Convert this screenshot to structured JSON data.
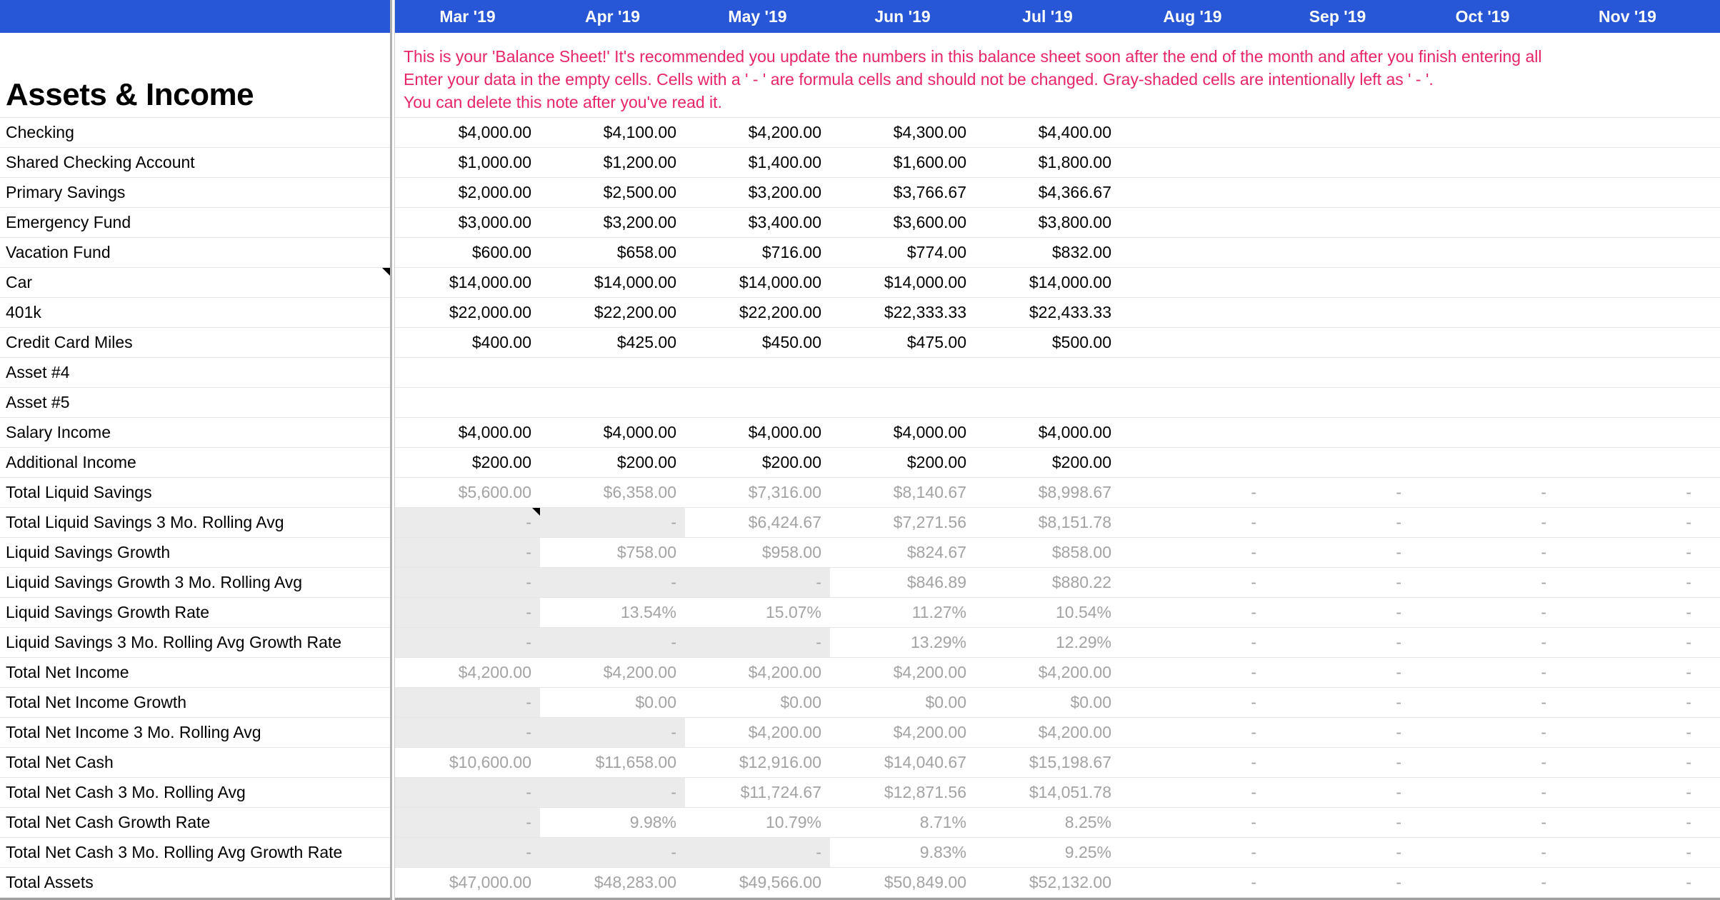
{
  "colors": {
    "header_bg": "#2757d6",
    "header_text": "#ffffff",
    "note_text": "#e82565",
    "input_text": "#000000",
    "formula_text": "#a3a3a3",
    "shaded_cell_bg": "#ebebeb",
    "grid_line": "#e6e6e6"
  },
  "title": "Assets & Income",
  "note_lines": [
    "This is your 'Balance Sheet!' It's recommended you update the numbers in this balance sheet soon after the end of the month and after you finish entering all",
    "Enter your data in the empty cells. Cells with a ' - ' are formula cells and should not be changed. Gray-shaded cells are intentionally left as ' - '.",
    "You can delete this note after you've read it."
  ],
  "months": [
    "Mar '19",
    "Apr '19",
    "May '19",
    "Jun '19",
    "Jul '19",
    "Aug '19",
    "Sep '19",
    "Oct '19",
    "Nov '19"
  ],
  "rows": [
    {
      "label": "Checking",
      "type": "input",
      "cells": [
        "$4,000.00",
        "$4,100.00",
        "$4,200.00",
        "$4,300.00",
        "$4,400.00",
        "",
        "",
        "",
        ""
      ]
    },
    {
      "label": "Shared Checking Account",
      "type": "input",
      "cells": [
        "$1,000.00",
        "$1,200.00",
        "$1,400.00",
        "$1,600.00",
        "$1,800.00",
        "",
        "",
        "",
        ""
      ]
    },
    {
      "label": "Primary Savings",
      "type": "input",
      "cells": [
        "$2,000.00",
        "$2,500.00",
        "$3,200.00",
        "$3,766.67",
        "$4,366.67",
        "",
        "",
        "",
        ""
      ]
    },
    {
      "label": "Emergency Fund",
      "type": "input",
      "cells": [
        "$3,000.00",
        "$3,200.00",
        "$3,400.00",
        "$3,600.00",
        "$3,800.00",
        "",
        "",
        "",
        ""
      ]
    },
    {
      "label": "Vacation Fund",
      "type": "input",
      "cells": [
        "$600.00",
        "$658.00",
        "$716.00",
        "$774.00",
        "$832.00",
        "",
        "",
        "",
        ""
      ]
    },
    {
      "label": "Car",
      "type": "input",
      "label_note_marker": true,
      "cells": [
        "$14,000.00",
        "$14,000.00",
        "$14,000.00",
        "$14,000.00",
        "$14,000.00",
        "",
        "",
        "",
        ""
      ]
    },
    {
      "label": "401k",
      "type": "input",
      "cells": [
        "$22,000.00",
        "$22,200.00",
        "$22,200.00",
        "$22,333.33",
        "$22,433.33",
        "",
        "",
        "",
        ""
      ]
    },
    {
      "label": "Credit Card Miles",
      "type": "input",
      "cells": [
        "$400.00",
        "$425.00",
        "$450.00",
        "$475.00",
        "$500.00",
        "",
        "",
        "",
        ""
      ]
    },
    {
      "label": "Asset #4",
      "type": "input",
      "cells": [
        "",
        "",
        "",
        "",
        "",
        "",
        "",
        "",
        ""
      ]
    },
    {
      "label": "Asset #5",
      "type": "input",
      "cells": [
        "",
        "",
        "",
        "",
        "",
        "",
        "",
        "",
        ""
      ]
    },
    {
      "label": "Salary Income",
      "type": "input",
      "cells": [
        "$4,000.00",
        "$4,000.00",
        "$4,000.00",
        "$4,000.00",
        "$4,000.00",
        "",
        "",
        "",
        ""
      ]
    },
    {
      "label": "Additional Income",
      "type": "input",
      "cells": [
        "$200.00",
        "$200.00",
        "$200.00",
        "$200.00",
        "$200.00",
        "",
        "",
        "",
        ""
      ]
    },
    {
      "label": "Total Liquid Savings",
      "type": "formula",
      "cells": [
        "$5,600.00",
        "$6,358.00",
        "$7,316.00",
        "$8,140.67",
        "$8,998.67",
        "-",
        "-",
        "-",
        "-"
      ]
    },
    {
      "label": "Total Liquid Savings 3 Mo. Rolling Avg",
      "type": "formula",
      "shaded": [
        0,
        1
      ],
      "cell_note_marker": 0,
      "cells": [
        "-",
        "-",
        "$6,424.67",
        "$7,271.56",
        "$8,151.78",
        "-",
        "-",
        "-",
        "-"
      ]
    },
    {
      "label": "Liquid Savings Growth",
      "type": "formula",
      "shaded": [
        0
      ],
      "cells": [
        "-",
        "$758.00",
        "$958.00",
        "$824.67",
        "$858.00",
        "-",
        "-",
        "-",
        "-"
      ]
    },
    {
      "label": "Liquid Savings Growth 3 Mo. Rolling Avg",
      "type": "formula",
      "shaded": [
        0,
        1,
        2
      ],
      "cells": [
        "-",
        "-",
        "-",
        "$846.89",
        "$880.22",
        "-",
        "-",
        "-",
        "-"
      ]
    },
    {
      "label": "Liquid Savings Growth Rate",
      "type": "formula",
      "shaded": [
        0
      ],
      "cells": [
        "-",
        "13.54%",
        "15.07%",
        "11.27%",
        "10.54%",
        "-",
        "-",
        "-",
        "-"
      ]
    },
    {
      "label": "Liquid Savings 3 Mo. Rolling Avg Growth Rate",
      "type": "formula",
      "shaded": [
        0,
        1,
        2
      ],
      "cells": [
        "-",
        "-",
        "-",
        "13.29%",
        "12.29%",
        "-",
        "-",
        "-",
        "-"
      ]
    },
    {
      "label": "Total Net Income",
      "type": "formula",
      "cells": [
        "$4,200.00",
        "$4,200.00",
        "$4,200.00",
        "$4,200.00",
        "$4,200.00",
        "-",
        "-",
        "-",
        "-"
      ]
    },
    {
      "label": "Total Net Income Growth",
      "type": "formula",
      "shaded": [
        0
      ],
      "cells": [
        "-",
        "$0.00",
        "$0.00",
        "$0.00",
        "$0.00",
        "-",
        "-",
        "-",
        "-"
      ]
    },
    {
      "label": "Total Net Income 3 Mo. Rolling Avg",
      "type": "formula",
      "shaded": [
        0,
        1
      ],
      "cells": [
        "-",
        "-",
        "$4,200.00",
        "$4,200.00",
        "$4,200.00",
        "-",
        "-",
        "-",
        "-"
      ]
    },
    {
      "label": "Total Net Cash",
      "type": "formula",
      "cells": [
        "$10,600.00",
        "$11,658.00",
        "$12,916.00",
        "$14,040.67",
        "$15,198.67",
        "-",
        "-",
        "-",
        "-"
      ]
    },
    {
      "label": "Total Net Cash 3 Mo. Rolling Avg",
      "type": "formula",
      "shaded": [
        0,
        1
      ],
      "cells": [
        "-",
        "-",
        "$11,724.67",
        "$12,871.56",
        "$14,051.78",
        "-",
        "-",
        "-",
        "-"
      ]
    },
    {
      "label": "Total Net Cash Growth Rate",
      "type": "formula",
      "shaded": [
        0
      ],
      "cells": [
        "-",
        "9.98%",
        "10.79%",
        "8.71%",
        "8.25%",
        "-",
        "-",
        "-",
        "-"
      ]
    },
    {
      "label": "Total Net Cash 3 Mo. Rolling Avg Growth Rate",
      "type": "formula",
      "shaded": [
        0,
        1,
        2
      ],
      "cells": [
        "-",
        "-",
        "-",
        "9.83%",
        "9.25%",
        "-",
        "-",
        "-",
        "-"
      ]
    },
    {
      "label": "Total Assets",
      "type": "formula",
      "cells": [
        "$47,000.00",
        "$48,283.00",
        "$49,566.00",
        "$50,849.00",
        "$52,132.00",
        "-",
        "-",
        "-",
        "-"
      ]
    }
  ]
}
